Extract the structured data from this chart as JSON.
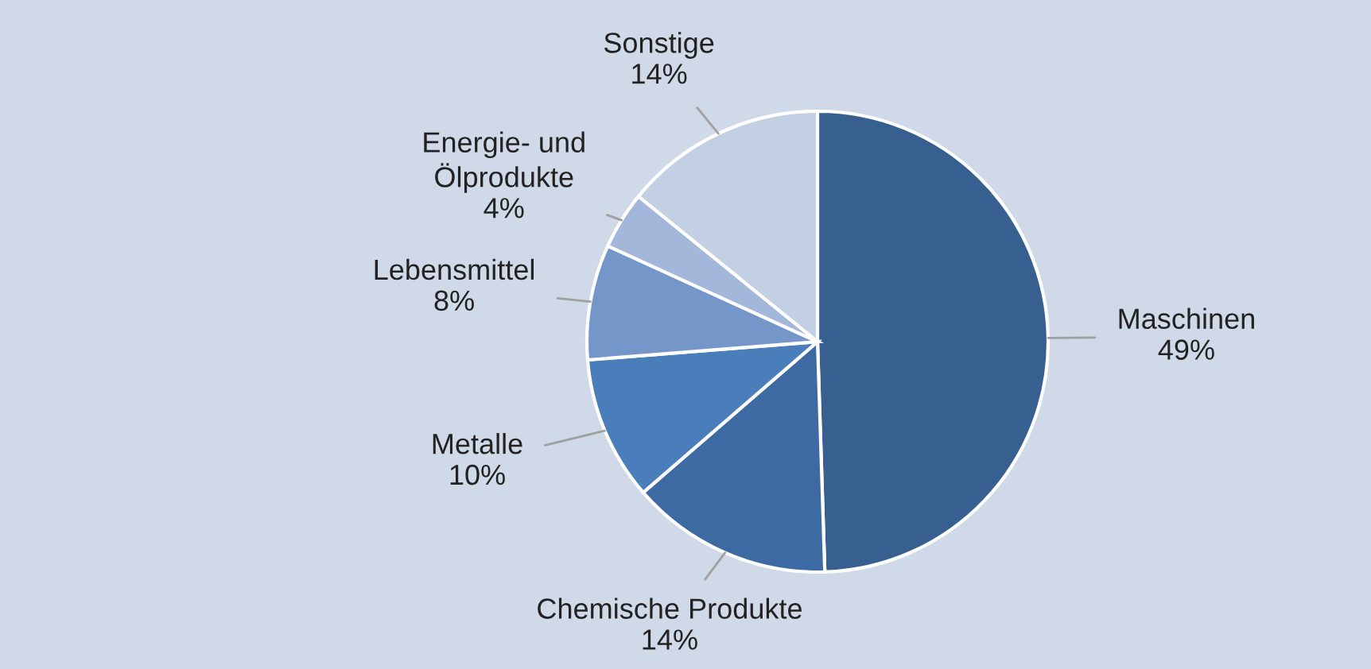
{
  "chart_data": {
    "type": "pie",
    "categories": [
      "Maschinen",
      "Chemische Produkte",
      "Metalle",
      "Lebensmittel",
      "Energie- und\nÖlprodukte",
      "Sonstige"
    ],
    "values": [
      49,
      14,
      10,
      8,
      4,
      14
    ],
    "colors": [
      "#375f8f",
      "#3e6aa3",
      "#4a7ebb",
      "#7596c9",
      "#a3b7da",
      "#c3cfe3"
    ],
    "value_labels": [
      "49%",
      "14%",
      "10%",
      "8%",
      "4%",
      "14%"
    ]
  }
}
